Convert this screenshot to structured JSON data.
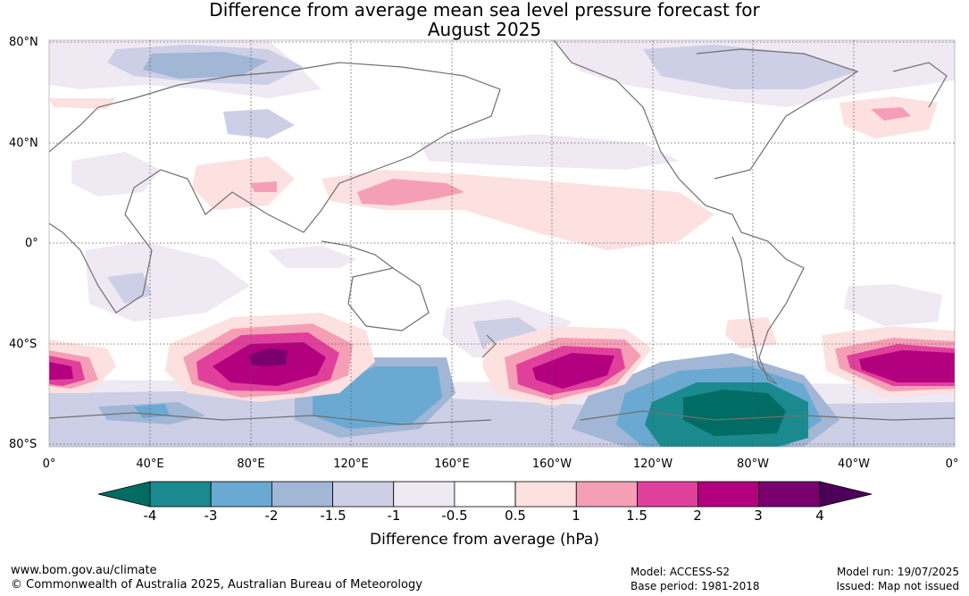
{
  "title": {
    "line1": "Difference from average mean sea level pressure forecast for",
    "line2": "August 2025"
  },
  "axes": {
    "lat_labels": [
      "80°N",
      "40°N",
      "0°",
      "40°S",
      "80°S"
    ],
    "lon_labels": [
      "0°",
      "40°E",
      "80°E",
      "120°E",
      "160°E",
      "160°W",
      "120°W",
      "80°W",
      "40°W",
      "0°"
    ]
  },
  "colorbar": {
    "ticks": [
      "-4",
      "-3",
      "-2",
      "-1.5",
      "-1",
      "-0.5",
      "0.5",
      "1",
      "1.5",
      "2",
      "3",
      "4"
    ],
    "colors": [
      "#1a8a8e",
      "#6aaad2",
      "#a2b6d6",
      "#cdcfe6",
      "#efe9f4",
      "#ffffff",
      "#fde0e0",
      "#f59fb6",
      "#e0409c",
      "#b3007e",
      "#7a006f"
    ],
    "under_color": "#006c63",
    "over_color": "#4d005a",
    "label": "Difference from average (hPa)"
  },
  "footer": {
    "url": "www.bom.gov.au/climate",
    "copyright": "© Commonwealth of Australia 2025, Australian Bureau of Meteorology",
    "model": "Model: ACCESS-S2",
    "base_period": "Base period: 1981-2018",
    "model_run": "Model run: 19/07/2025",
    "issued": "Issued: Map not issued"
  }
}
